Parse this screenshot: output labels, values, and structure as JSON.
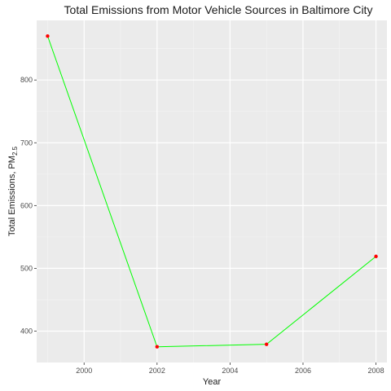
{
  "chart_data": {
    "type": "line",
    "title": "Total Emissions from Motor Vehicle Sources in Baltimore City",
    "xlabel": "Year",
    "ylabel_main": "Total Emissions, PM",
    "ylabel_sub": "2.5",
    "x": [
      1999,
      2002,
      2005,
      2008
    ],
    "series": [
      {
        "values": [
          870,
          375,
          379,
          519
        ]
      }
    ],
    "xlim": [
      1998.7,
      2008.3
    ],
    "ylim": [
      350,
      895
    ],
    "x_ticks": [
      2000,
      2002,
      2004,
      2006,
      2008
    ],
    "y_ticks": [
      400,
      500,
      600,
      700,
      800
    ],
    "grid": true,
    "colors": {
      "line": "#00ff00",
      "points": "#ff0000",
      "panel": "#ebebeb",
      "grid_major": "#ffffff",
      "tick_text": "#4d4d4d"
    }
  }
}
